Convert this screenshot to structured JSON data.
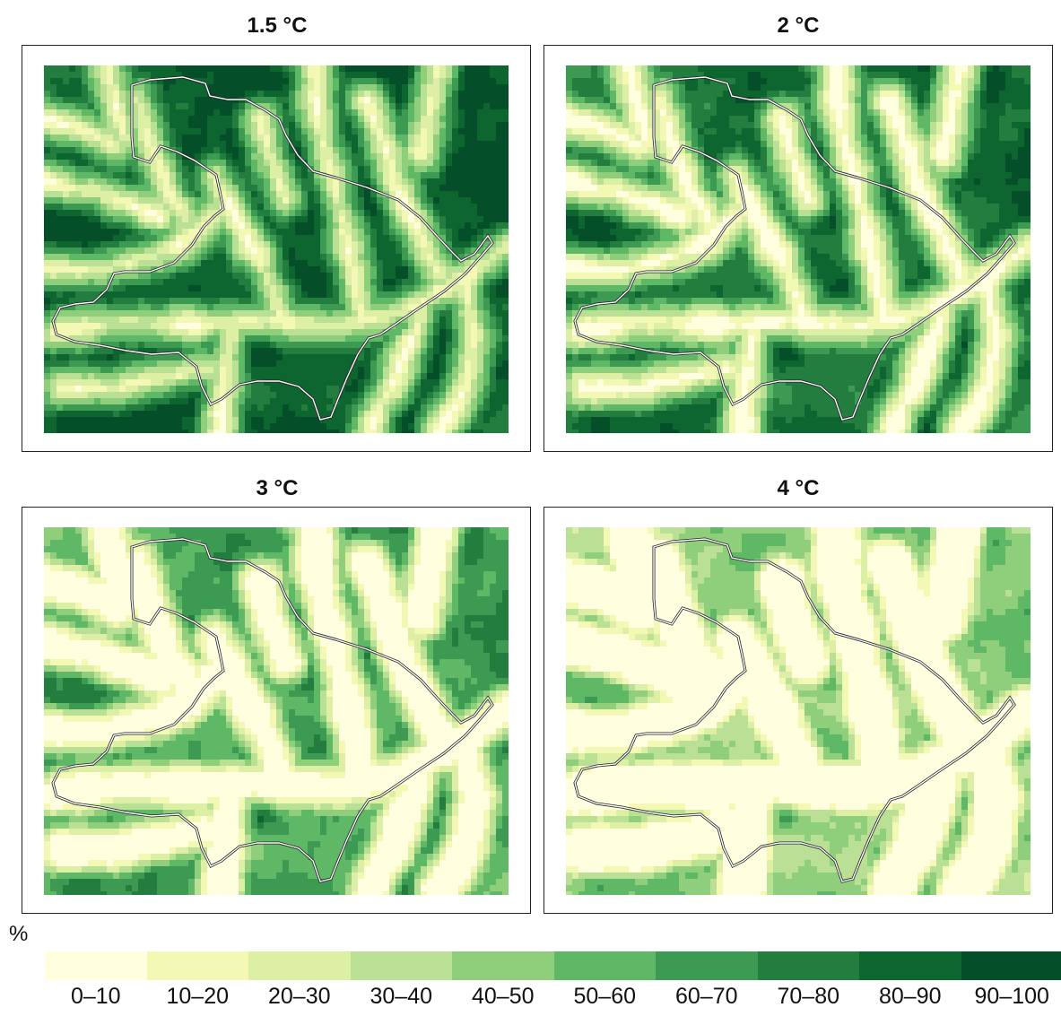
{
  "panels": [
    {
      "title": "1.5 °C",
      "warming": 1.5
    },
    {
      "title": "2 °C",
      "warming": 2
    },
    {
      "title": "3 °C",
      "warming": 3
    },
    {
      "title": "4 °C",
      "warming": 4
    }
  ],
  "legend": {
    "unit": "%",
    "classes": [
      {
        "label": "0–10",
        "color": "#ffffe0"
      },
      {
        "label": "10–20",
        "color": "#f3f8b4"
      },
      {
        "label": "20–30",
        "color": "#dcefa4"
      },
      {
        "label": "30–40",
        "color": "#b9e095"
      },
      {
        "label": "40–50",
        "color": "#8fcf7c"
      },
      {
        "label": "50–60",
        "color": "#5fb865"
      },
      {
        "label": "60–70",
        "color": "#3d9a52"
      },
      {
        "label": "70–80",
        "color": "#237d3f"
      },
      {
        "label": "80–90",
        "color": "#0d6530"
      },
      {
        "label": "90–100",
        "color": "#044e2a"
      }
    ]
  }
}
